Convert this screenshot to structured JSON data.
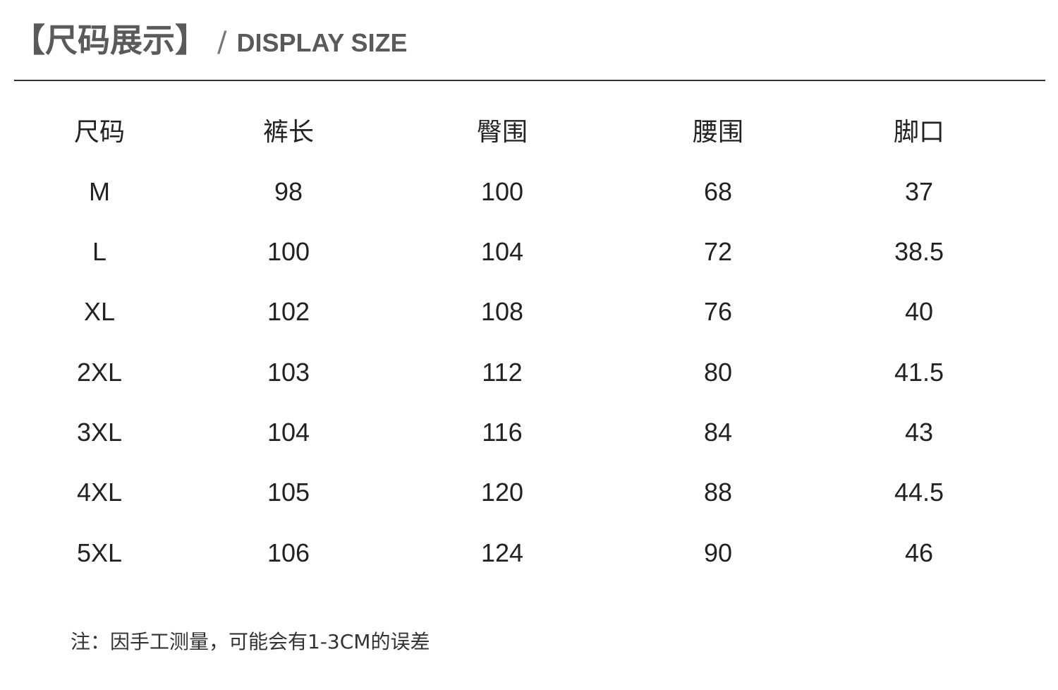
{
  "header": {
    "title": "【尺码展示】",
    "separator": "/",
    "subtitle": "DISPLAY SIZE"
  },
  "table": {
    "columns": [
      "尺码",
      "裤长",
      "臀围",
      "腰围",
      "脚口"
    ],
    "rows": [
      [
        "M",
        "98",
        "100",
        "68",
        "37"
      ],
      [
        "L",
        "100",
        "104",
        "72",
        "38.5"
      ],
      [
        "XL",
        "102",
        "108",
        "76",
        "40"
      ],
      [
        "2XL",
        "103",
        "112",
        "80",
        "41.5"
      ],
      [
        "3XL",
        "104",
        "116",
        "84",
        "43"
      ],
      [
        "4XL",
        "105",
        "120",
        "88",
        "44.5"
      ],
      [
        "5XL",
        "106",
        "124",
        "90",
        "46"
      ]
    ]
  },
  "note": "注：因手工测量，可能会有1-3CM的误差",
  "colors": {
    "title": "#5a5a5a",
    "text": "#222222",
    "rule": "#333333"
  }
}
